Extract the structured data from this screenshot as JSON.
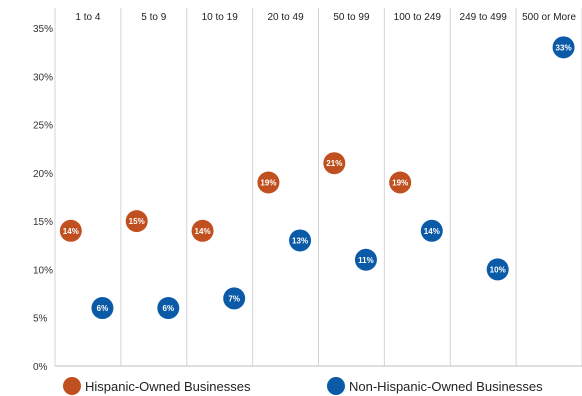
{
  "chart_data": {
    "type": "scatter",
    "title": "",
    "xlabel": "",
    "ylabel": "",
    "categories": [
      "1 to 4",
      "5 to 9",
      "10 to 19",
      "20 to 49",
      "50 to 99",
      "100 to 249",
      "249 to 499",
      "500 or More"
    ],
    "y_ticks": [
      "0%",
      "5%",
      "10%",
      "15%",
      "20%",
      "25%",
      "30%",
      "35%"
    ],
    "ylim": [
      0,
      35
    ],
    "grid": "vertical",
    "legend_position": "bottom",
    "series": [
      {
        "name": "Hispanic-Owned Businesses",
        "color": "#c0501f",
        "values": [
          14,
          15,
          14,
          19,
          21,
          19,
          null,
          null
        ],
        "labels": [
          "14%",
          "15%",
          "14%",
          "19%",
          "21%",
          "19%",
          "",
          ""
        ]
      },
      {
        "name": "Non-Hispanic-Owned Businesses",
        "color": "#0b5aa8",
        "values": [
          6,
          6,
          7,
          13,
          11,
          14,
          10,
          33
        ],
        "labels": [
          "6%",
          "6%",
          "7%",
          "13%",
          "11%",
          "14%",
          "10%",
          "33%"
        ]
      }
    ]
  }
}
